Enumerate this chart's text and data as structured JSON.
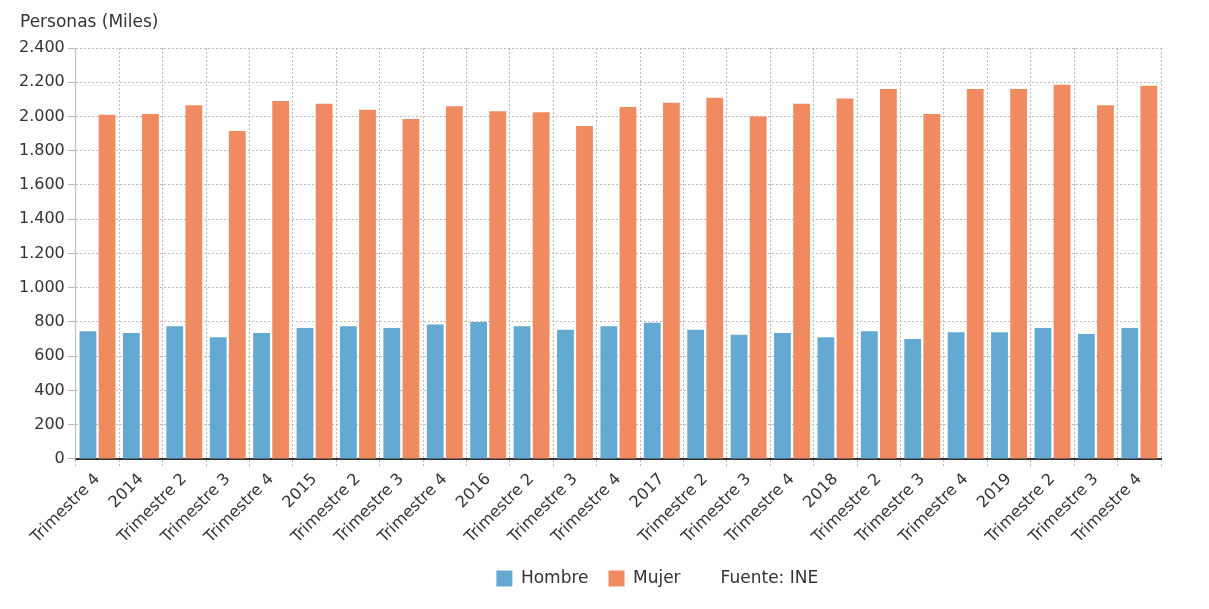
{
  "chart_data": {
    "type": "bar",
    "ylabel": "Personas (Miles)",
    "categories": [
      "Trimestre 4",
      "2014",
      "Trimestre 2",
      "Trimestre 3",
      "Trimestre 4",
      "2015",
      "Trimestre 2",
      "Trimestre 3",
      "Trimestre 4",
      "2016",
      "Trimestre 2",
      "Trimestre 3",
      "Trimestre 4",
      "2017",
      "Trimestre 2",
      "Trimestre 3",
      "Trimestre 4",
      "2018",
      "Trimestre 2",
      "Trimestre 3",
      "Trimestre 4",
      "2019",
      "Trimestre 2",
      "Trimestre 3",
      "Trimestre 4"
    ],
    "series": [
      {
        "name": "Hombre",
        "color": "#64a9d2",
        "values": [
          745,
          735,
          775,
          710,
          735,
          765,
          775,
          765,
          785,
          800,
          775,
          755,
          775,
          795,
          755,
          725,
          735,
          710,
          745,
          700,
          740,
          740,
          765,
          730,
          765
        ]
      },
      {
        "name": "Mujer",
        "color": "#f08b61",
        "values": [
          2010,
          2015,
          2065,
          1915,
          2090,
          2075,
          2040,
          1985,
          2060,
          2030,
          2025,
          1945,
          2055,
          2080,
          2110,
          2000,
          2075,
          2105,
          2160,
          2015,
          2160,
          2160,
          2185,
          2065,
          2180
        ]
      }
    ],
    "ylim": [
      0,
      2400
    ],
    "yticks": [
      0,
      200,
      400,
      600,
      800,
      {
        "value": 1000,
        "label": "1.000"
      },
      {
        "value": 1200,
        "label": "1.200"
      },
      {
        "value": 1400,
        "label": "1.400"
      },
      {
        "value": 1600,
        "label": "1.600"
      },
      {
        "value": 1800,
        "label": "1.800"
      },
      {
        "value": 2000,
        "label": "2.000"
      },
      {
        "value": 2200,
        "label": "2.200"
      },
      {
        "value": 2400,
        "label": "2.400"
      }
    ],
    "grid": true,
    "legend": "bottom",
    "annotations": [
      "Fuente: INE"
    ]
  }
}
